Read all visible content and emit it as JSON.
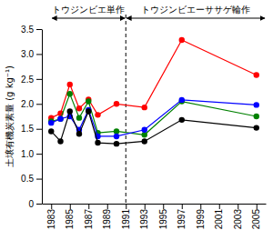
{
  "chart_data": {
    "type": "line",
    "y_label": "土壌有機炭素量 (g kg⁻¹)",
    "annotations": [
      {
        "text": "トウジンビエ単作",
        "x": [
          1983,
          1991
        ]
      },
      {
        "text": "トウジンビエーササゲ輪作",
        "x": [
          1991,
          2006
        ]
      }
    ],
    "x": [
      1983,
      1984,
      1985,
      1986,
      1987,
      1988,
      1990,
      1993,
      1997,
      2005
    ],
    "series": [
      {
        "color": "#ff0000",
        "marker": "circle",
        "line_style": "solid",
        "values": [
          1.72,
          1.81,
          2.39,
          1.91,
          2.09,
          1.78,
          2.0,
          1.93,
          3.28,
          2.58
        ]
      },
      {
        "color": "#008000",
        "marker": "circle",
        "line_style": "solid",
        "values": [
          1.65,
          1.7,
          2.2,
          1.72,
          2.05,
          1.42,
          1.45,
          1.38,
          2.05,
          1.75
        ]
      },
      {
        "color": "#0000ff",
        "marker": "circle",
        "line_style": "solid",
        "values": [
          1.62,
          1.7,
          1.75,
          1.48,
          1.88,
          1.35,
          1.35,
          1.48,
          2.08,
          1.98
        ]
      },
      {
        "color": "#000000",
        "marker": "circle",
        "line_style": "solid",
        "values": [
          1.45,
          1.25,
          1.85,
          1.4,
          1.85,
          1.22,
          1.2,
          1.25,
          1.68,
          1.52
        ]
      }
    ],
    "xlim": [
      1982,
      2006
    ],
    "xticks": [
      1983,
      1985,
      1987,
      1989,
      1991,
      1993,
      1995,
      1997,
      1999,
      2001,
      2003,
      2005
    ],
    "ylim": [
      0,
      3.5
    ],
    "yticks": [
      0,
      0.5,
      {
        "value": 1,
        "label": "1.0"
      },
      1.5,
      {
        "value": 2,
        "label": "2.0"
      },
      2.5,
      {
        "value": 3,
        "label": "3.0"
      },
      3.5
    ],
    "grid": false
  }
}
